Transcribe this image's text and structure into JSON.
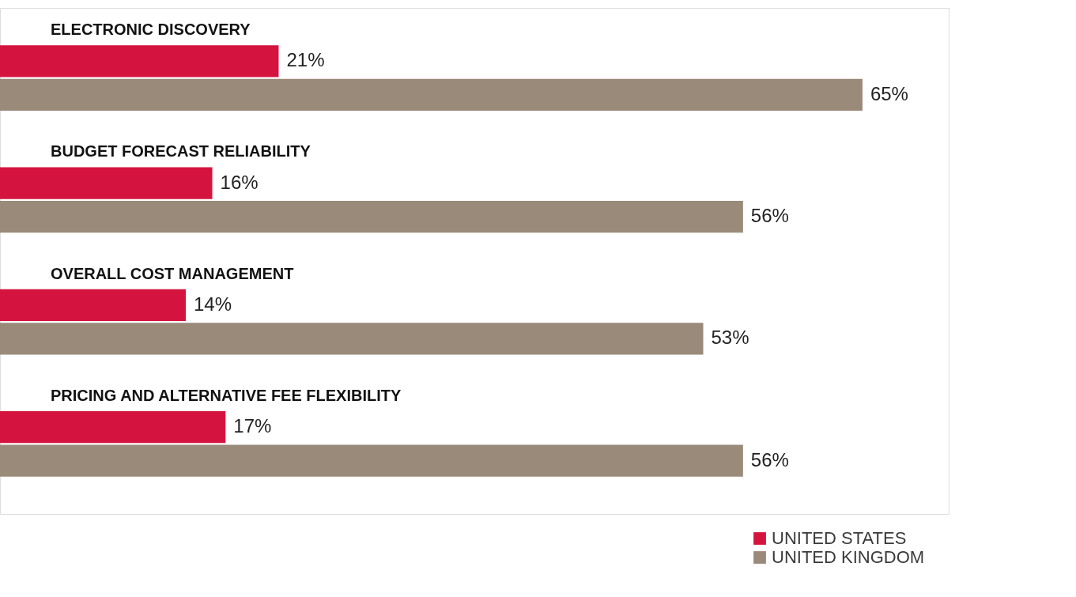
{
  "chart_data": {
    "type": "bar",
    "orientation": "horizontal",
    "categories": [
      "ELECTRONIC DISCOVERY",
      "BUDGET FORECAST RELIABILITY",
      "OVERALL COST MANAGEMENT",
      "PRICING AND ALTERNATIVE FEE FLEXIBILITY"
    ],
    "series": [
      {
        "name": "UNITED STATES",
        "color": "#d4143f",
        "values": [
          21,
          16,
          14,
          17
        ],
        "value_labels": [
          "21%",
          "16%",
          "14%",
          "17%"
        ]
      },
      {
        "name": "UNITED KINGDOM",
        "color": "#9a8a7a",
        "values": [
          65,
          56,
          53,
          56
        ],
        "value_labels": [
          "65%",
          "56%",
          "53%",
          "56%"
        ]
      }
    ],
    "legend": "bottom right"
  }
}
